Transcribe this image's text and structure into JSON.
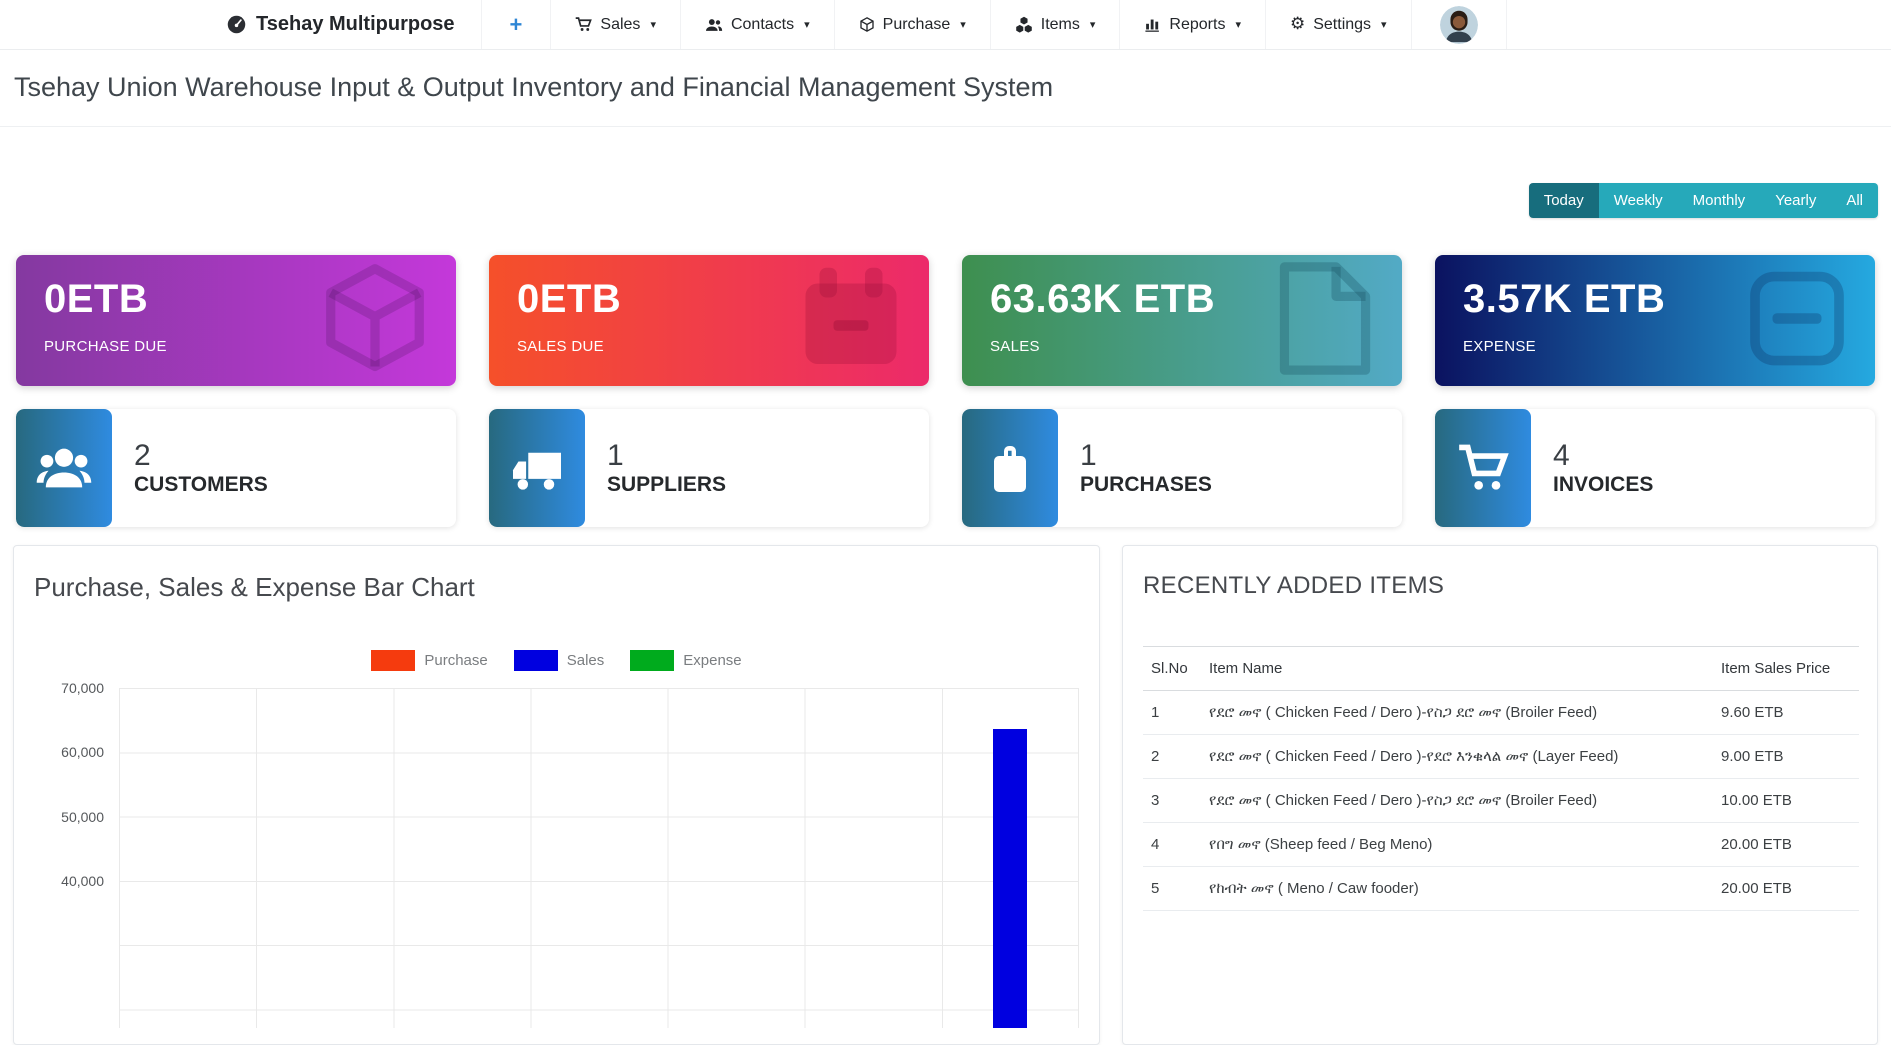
{
  "navbar": {
    "brand": "Tsehay Multipurpose",
    "plus_label": "+",
    "items": [
      {
        "label": "Sales",
        "icon": "cart-icon"
      },
      {
        "label": "Contacts",
        "icon": "users-icon"
      },
      {
        "label": "Purchase",
        "icon": "box-icon"
      },
      {
        "label": "Items",
        "icon": "cubes-icon"
      },
      {
        "label": "Reports",
        "icon": "bar-chart-icon"
      },
      {
        "label": "Settings",
        "icon": "gears-icon"
      }
    ],
    "caret": "▾",
    "gear_glyph": "⚙"
  },
  "page_title": "Tsehay Union Warehouse Input & Output Inventory and Financial Management System",
  "filters": {
    "options": [
      "Today",
      "Weekly",
      "Monthly",
      "Yearly",
      "All"
    ],
    "active": "Today",
    "active_color": "#176d7d",
    "inactive_color": "#26a9ba"
  },
  "stat_cards": [
    {
      "value": "0ETB",
      "label": "PURCHASE DUE",
      "icon": "cube-icon",
      "gradient_from": "#8439a0",
      "gradient_to": "#c438da"
    },
    {
      "value": "0ETB",
      "label": "SALES DUE",
      "icon": "calendar-minus-icon",
      "gradient_from": "#f5502a",
      "gradient_to": "#ec2a6a"
    },
    {
      "value": "63.63K ETB",
      "label": "SALES",
      "icon": "file-icon",
      "gradient_from": "#3e8f4f",
      "gradient_to": "#52aac6"
    },
    {
      "value": "3.57K ETB",
      "label": "EXPENSE",
      "icon": "minus-square-icon",
      "gradient_from": "#0b1260",
      "gradient_to": "#25a9e0"
    }
  ],
  "count_cards": [
    {
      "count": "2",
      "label": "CUSTOMERS",
      "icon": "users-icon"
    },
    {
      "count": "1",
      "label": "SUPPLIERS",
      "icon": "truck-icon"
    },
    {
      "count": "1",
      "label": "PURCHASES",
      "icon": "briefcase-icon"
    },
    {
      "count": "4",
      "label": "INVOICES",
      "icon": "cart-icon"
    }
  ],
  "chart_data": {
    "type": "bar",
    "title": "Purchase, Sales & Expense Bar Chart",
    "legend_position": "top-center",
    "legend": [
      {
        "name": "Purchase",
        "color": "#f53b0e"
      },
      {
        "name": "Sales",
        "color": "#0000e0"
      },
      {
        "name": "Expense",
        "color": "#00ab1d"
      }
    ],
    "grid": true,
    "y_ticks_visible": [
      70000,
      60000,
      50000,
      40000
    ],
    "y_tick_labels": [
      "70,000",
      "60,000",
      "50,000",
      "40,000"
    ],
    "num_categories_visible": 7,
    "x_tick_labels_visible": false,
    "bars_visible": [
      {
        "series": "Sales",
        "category_index": 6,
        "value": 63630
      }
    ]
  },
  "items_panel": {
    "title": "RECENTLY ADDED ITEMS",
    "columns": [
      "Sl.No",
      "Item Name",
      "Item Sales Price"
    ],
    "rows": [
      {
        "no": "1",
        "name": "የደሮ መኖ ( Chicken Feed / Dero )-የስጋ ደሮ መኖ (Broiler Feed)",
        "price": "9.60 ETB"
      },
      {
        "no": "2",
        "name": "የደሮ መኖ ( Chicken Feed / Dero )-የደሮ እንቁላል መኖ (Layer Feed)",
        "price": "9.00 ETB"
      },
      {
        "no": "3",
        "name": "የደሮ መኖ ( Chicken Feed / Dero )-የስጋ ደሮ መኖ (Broiler Feed)",
        "price": "10.00 ETB"
      },
      {
        "no": "4",
        "name": "የበግ መኖ (Sheep feed / Beg Meno)",
        "price": "20.00 ETB"
      },
      {
        "no": "5",
        "name": "የከብት መኖ ( Meno / Caw fooder)",
        "price": "20.00 ETB"
      }
    ]
  }
}
